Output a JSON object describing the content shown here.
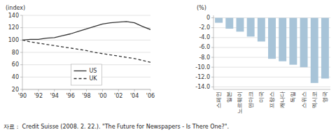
{
  "chart_data": [
    {
      "type": "line",
      "y_label": "(index)",
      "x": [
        1990,
        1991,
        1992,
        1993,
        1994,
        1995,
        1996,
        1997,
        1998,
        1999,
        2000,
        2001,
        2002,
        2003,
        2004,
        2005,
        2006
      ],
      "xlim": [
        1990,
        2006
      ],
      "xticks": [
        {
          "value": 1990,
          "label": "'90"
        },
        {
          "value": 1992,
          "label": "'92"
        },
        {
          "value": 1994,
          "label": "'94"
        },
        {
          "value": 1996,
          "label": "'96"
        },
        {
          "value": 1998,
          "label": "'98"
        },
        {
          "value": 2000,
          "label": "'00"
        },
        {
          "value": 2002,
          "label": "'02"
        },
        {
          "value": 2004,
          "label": "'04"
        },
        {
          "value": 2006,
          "label": "'06"
        }
      ],
      "ylim": [
        20,
        140
      ],
      "yticks": [
        20,
        40,
        60,
        80,
        100,
        120,
        140
      ],
      "series": [
        {
          "name": "US",
          "color": "#333333",
          "line_style": "solid",
          "values": [
            100,
            101,
            101,
            103,
            104,
            107,
            110,
            114,
            118,
            122,
            126,
            128,
            129,
            130,
            128,
            122,
            117
          ]
        },
        {
          "name": "UK",
          "color": "#333333",
          "line_style": "dashed",
          "values": [
            100,
            97,
            95,
            93,
            91,
            89,
            87,
            85,
            83,
            80,
            78,
            76,
            74,
            72,
            70,
            67,
            64
          ]
        }
      ],
      "grid": true,
      "legend": "lower center"
    },
    {
      "type": "bar",
      "y_label": "(%)",
      "categories": [
        "스페인",
        "일본",
        "노르웨이",
        "덴마크",
        "미국",
        "프랑스",
        "캐나다",
        "독일",
        "스위스",
        "멕시코",
        "영국"
      ],
      "values": [
        -1.0,
        -2.2,
        -2.8,
        -3.8,
        -4.8,
        -8.3,
        -8.8,
        -9.5,
        -10.0,
        -13.2,
        -12.3
      ],
      "color": "#a8c4d8",
      "ylim": [
        -14.5,
        0.5
      ],
      "yticks": [
        0,
        {
          "value": -2,
          "label": "-2.0"
        },
        {
          "value": -4,
          "label": "-4.0"
        },
        {
          "value": -6,
          "label": "-6.0"
        },
        {
          "value": -8,
          "label": "-8.0"
        },
        {
          "value": -10,
          "label": "-10.0"
        },
        {
          "value": -12,
          "label": "-12.0"
        },
        {
          "value": -14,
          "label": "-14.0"
        }
      ],
      "grid": true,
      "annotations": [
        "자료： Credit Suisse (2008. 2. 22.). \"The Future for Newspapers - Is There One?\"."
      ]
    }
  ]
}
